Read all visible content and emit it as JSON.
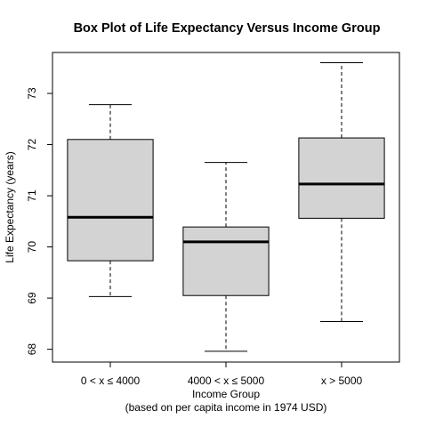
{
  "chart_data": {
    "type": "boxplot",
    "title": "Box Plot of Life Expectancy Versus Income Group",
    "xlabel": "Income Group",
    "xlabel_sub": "(based on per capita income in 1974 USD)",
    "ylabel": "Life Expectancy (years)",
    "ylim": [
      67.75,
      73.8
    ],
    "yticks": [
      68,
      69,
      70,
      71,
      72,
      73
    ],
    "categories": [
      "0 < x ≤ 4000",
      "4000 < x ≤ 5000",
      "x > 5000"
    ],
    "boxes": [
      {
        "category": "0 < x ≤ 4000",
        "whisker_low": 69.03,
        "q1": 69.73,
        "median": 70.58,
        "q3": 72.1,
        "whisker_high": 72.78
      },
      {
        "category": "4000 < x ≤ 5000",
        "whisker_low": 67.96,
        "q1": 69.05,
        "median": 70.1,
        "q3": 70.39,
        "whisker_high": 71.65
      },
      {
        "category": "x > 5000",
        "whisker_low": 68.54,
        "q1": 70.56,
        "median": 71.23,
        "q3": 72.13,
        "whisker_high": 73.6
      }
    ],
    "box_fill": "#d3d3d3",
    "grid": false,
    "legend": "none"
  }
}
